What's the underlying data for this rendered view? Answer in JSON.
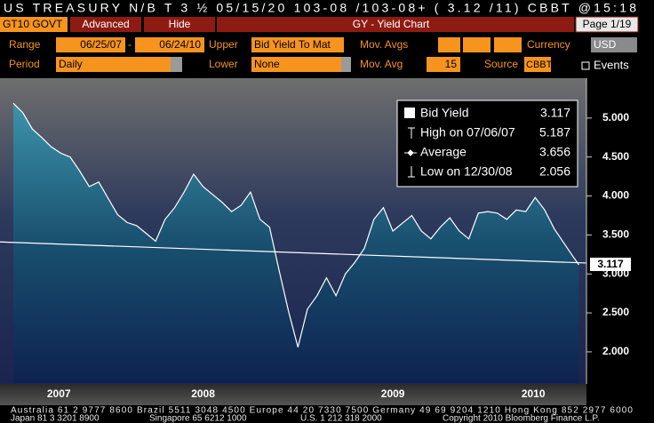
{
  "header": "US TREASURY N/B   T 3 ½  05/15/20  103-08  /103-08+  ( 3.12 /11) CBBT @15:18",
  "toolbar": {
    "security": "GT10 GOVT",
    "advanced": "Advanced",
    "hide": "Hide",
    "title": "GY - Yield Chart",
    "page": "Page 1/19"
  },
  "settings": {
    "range_label": "Range",
    "range_start": "06/25/07",
    "range_sep": "-",
    "range_end": "06/24/10",
    "upper_label": "Upper",
    "upper": "Bid Yield To Mat",
    "mov_avgs_label": "Mov. Avgs",
    "currency_label": "Currency",
    "currency": "USD",
    "period_label": "Period",
    "period": "Daily",
    "lower_label": "Lower",
    "lower": "None",
    "mov_avg_label": "Mov. Avg",
    "mov_avg": 15,
    "source_label": "Source",
    "source": "CBBT",
    "events_label": "Events"
  },
  "chart_data": {
    "type": "line",
    "x": [
      2007.5,
      2007.55,
      2007.6,
      2007.65,
      2007.7,
      2007.75,
      2007.8,
      2007.85,
      2007.9,
      2007.95,
      2008,
      2008.05,
      2008.1,
      2008.15,
      2008.2,
      2008.25,
      2008.3,
      2008.35,
      2008.4,
      2008.45,
      2008.5,
      2008.55,
      2008.6,
      2008.65,
      2008.7,
      2008.75,
      2008.8,
      2008.85,
      2008.9,
      2008.95,
      2009,
      2009.05,
      2009.1,
      2009.15,
      2009.2,
      2009.25,
      2009.3,
      2009.35,
      2009.4,
      2009.45,
      2009.5,
      2009.55,
      2009.6,
      2009.65,
      2009.7,
      2009.75,
      2009.8,
      2009.85,
      2009.9,
      2009.95,
      2010,
      2010.05,
      2010.1,
      2010.15,
      2010.2,
      2010.25,
      2010.3,
      2010.35,
      2010.4,
      2010.45,
      2010.48
    ],
    "series": [
      {
        "name": "Bid Yield",
        "color": "#ffffff",
        "values": [
          5.19,
          5.07,
          4.86,
          4.75,
          4.63,
          4.55,
          4.5,
          4.32,
          4.12,
          4.18,
          3.97,
          3.76,
          3.66,
          3.62,
          3.52,
          3.42,
          3.7,
          3.85,
          4.05,
          4.28,
          4.12,
          4.02,
          3.92,
          3.8,
          3.88,
          4.05,
          3.7,
          3.6,
          3.05,
          2.52,
          2.06,
          2.55,
          2.72,
          2.95,
          2.72,
          3.0,
          3.15,
          3.33,
          3.7,
          3.85,
          3.55,
          3.65,
          3.75,
          3.55,
          3.45,
          3.6,
          3.72,
          3.55,
          3.45,
          3.78,
          3.8,
          3.78,
          3.7,
          3.82,
          3.8,
          3.98,
          3.82,
          3.58,
          3.4,
          3.22,
          3.117
        ]
      }
    ],
    "statistics": [
      {
        "label": "High on 07/06/07",
        "value": 5.187
      },
      {
        "label": "Average",
        "value": 3.656
      },
      {
        "label": "Low on 12/30/08",
        "value": 2.056
      }
    ],
    "trend_line": {
      "color": "#ffffff",
      "values": [
        3.41,
        3.14
      ]
    },
    "xlim": [
      2007.43,
      2010.52
    ],
    "xticks": [
      {
        "value": 2007.74,
        "label": "2007"
      },
      {
        "value": 2008.5,
        "label": "2008"
      },
      {
        "value": 2009.5,
        "label": "2009"
      },
      {
        "value": 2010.24,
        "label": "2010"
      }
    ],
    "ylim": [
      1.6,
      5.5
    ],
    "yticks": [
      {
        "value": 2,
        "label": "2.000"
      },
      {
        "value": 2.5,
        "label": "2.500"
      },
      {
        "value": 3,
        "label": "3.000"
      },
      {
        "value": 3.5,
        "label": "3.500"
      },
      {
        "value": 4,
        "label": "4.000"
      },
      {
        "value": 4.5,
        "label": "4.500"
      },
      {
        "value": 5,
        "label": "5.000"
      }
    ],
    "grid": false
  },
  "footer": [
    "Australia 61 2 9777 8600 Brazil 5511 3048 4500 Europe 44 20 7330 7500 Germany 49 69 9204 1210 Hong Kong 852 2977 6000",
    "Japan 81 3 3201 8900",
    "Singapore 65 6212 1000",
    "U.S. 1 212 318 2000",
    "Copyright 2010 Bloomberg Finance L.P."
  ]
}
